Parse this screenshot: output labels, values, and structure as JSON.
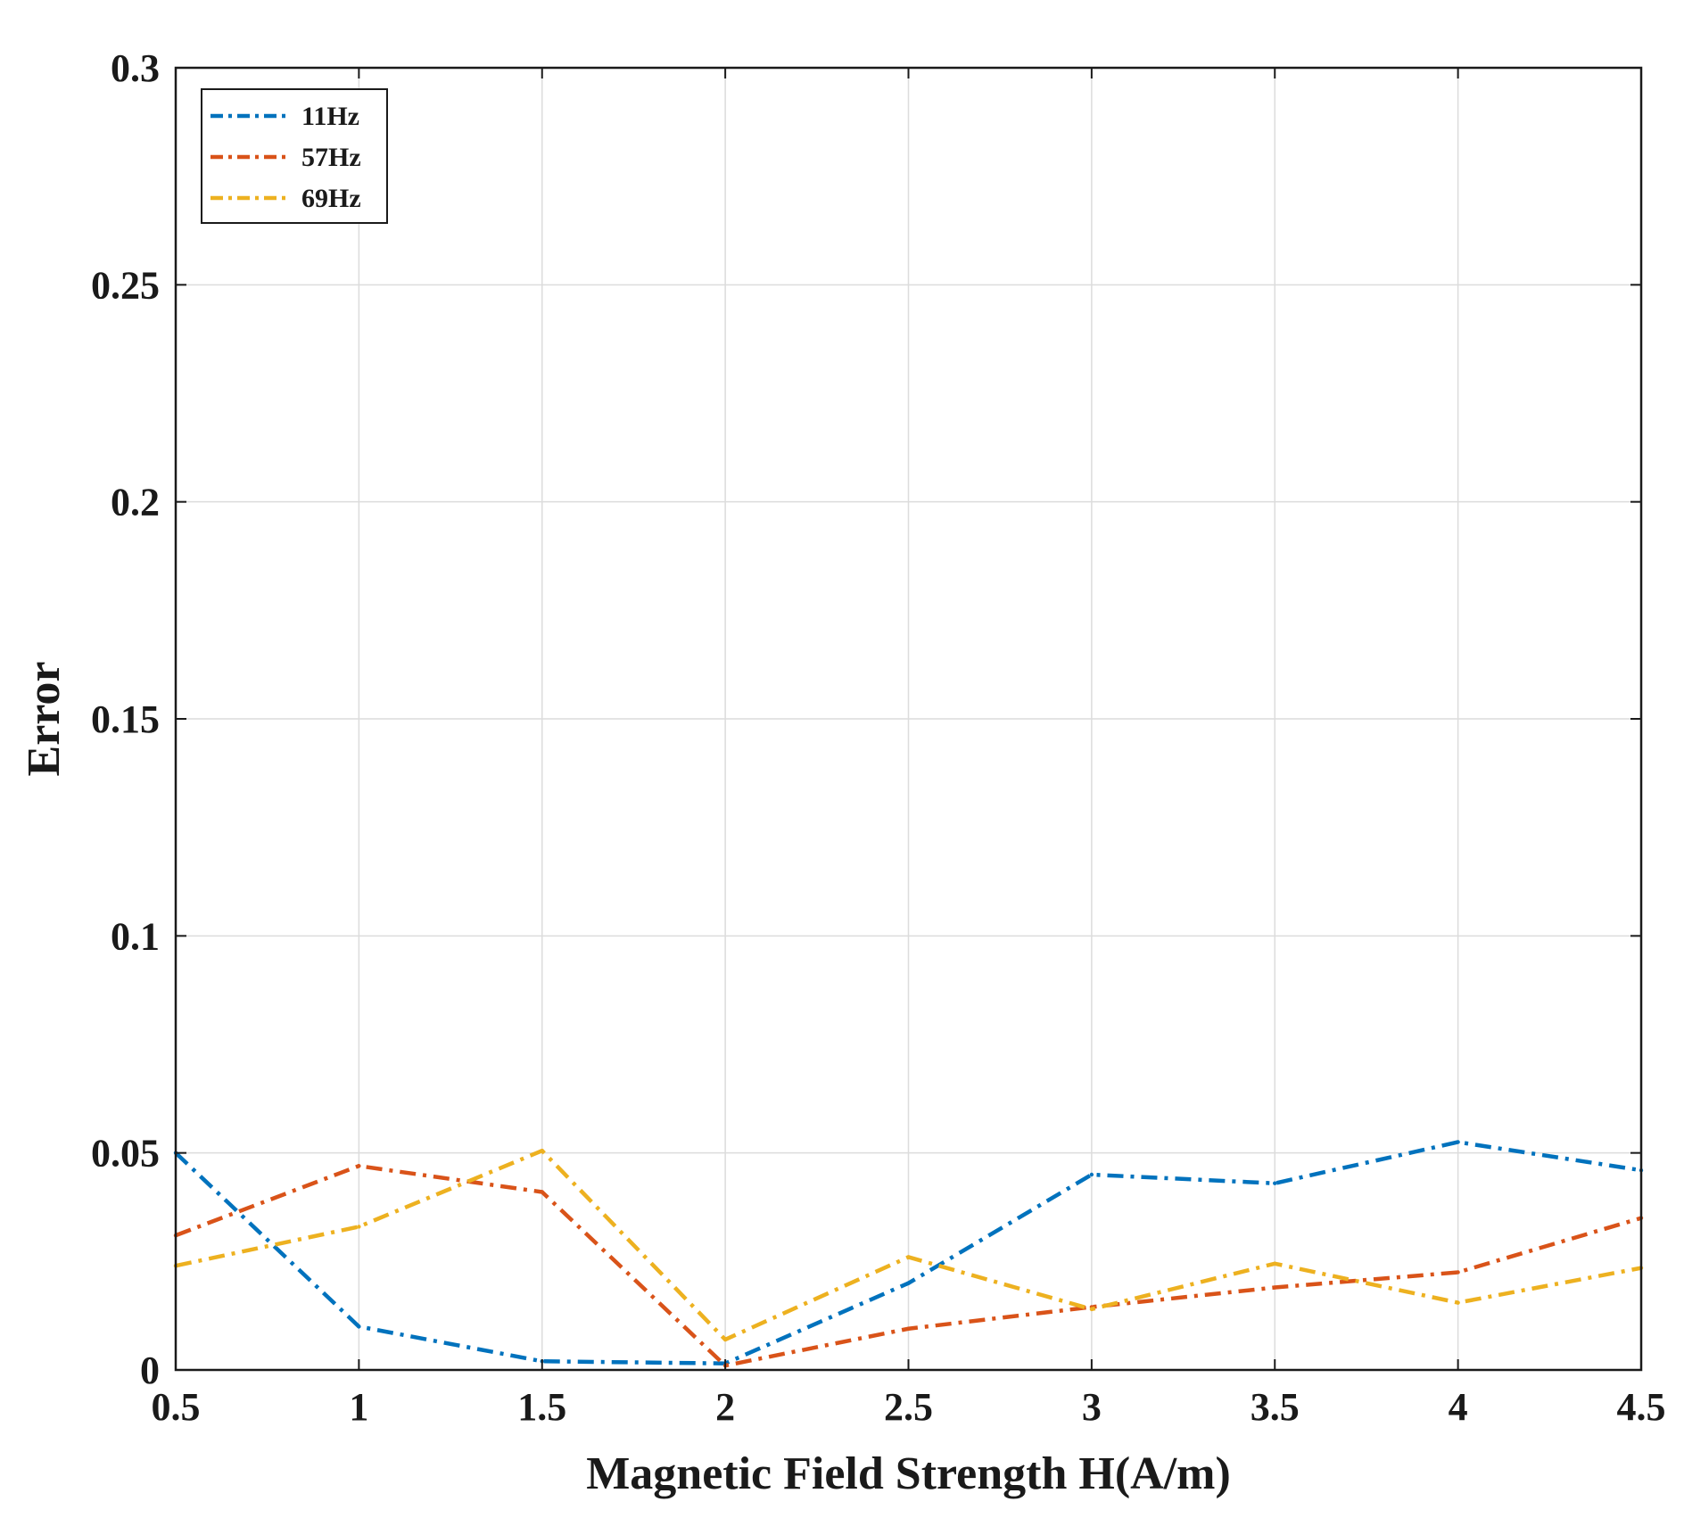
{
  "chart_data": {
    "type": "line",
    "title": "",
    "xlabel": "Magnetic Field Strength H(A/m)",
    "ylabel": "Error",
    "xlim": [
      0.5,
      4.5
    ],
    "ylim": [
      0,
      0.3
    ],
    "grid": true,
    "legend_position": "top-left",
    "x": [
      0.5,
      1,
      1.5,
      2,
      2.5,
      3,
      3.5,
      4,
      4.5
    ],
    "x_ticks": [
      0.5,
      1,
      1.5,
      2,
      2.5,
      3,
      3.5,
      4,
      4.5
    ],
    "x_tick_labels": [
      "0.5",
      "1",
      "1.5",
      "2",
      "2.5",
      "3",
      "3.5",
      "4",
      "4.5"
    ],
    "y_ticks": [
      0,
      0.05,
      0.1,
      0.15,
      0.2,
      0.25,
      0.3
    ],
    "y_tick_labels": [
      "0",
      "0.05",
      "0.1",
      "0.15",
      "0.2",
      "0.25",
      "0.3"
    ],
    "series": [
      {
        "name": "11Hz",
        "color": "#0072BD",
        "line_style": "dash-dot",
        "values": [
          0.05,
          0.01,
          0.002,
          0.0015,
          0.02,
          0.045,
          0.043,
          0.0525,
          0.046
        ]
      },
      {
        "name": "57Hz",
        "color": "#D95319",
        "line_style": "dash-dot",
        "values": [
          0.031,
          0.047,
          0.041,
          0.001,
          0.0095,
          0.0145,
          0.019,
          0.0225,
          0.035
        ]
      },
      {
        "name": "69Hz",
        "color": "#EDB120",
        "line_style": "dash-dot",
        "values": [
          0.024,
          0.033,
          0.0505,
          0.007,
          0.026,
          0.014,
          0.0245,
          0.0155,
          0.0235
        ]
      }
    ]
  }
}
